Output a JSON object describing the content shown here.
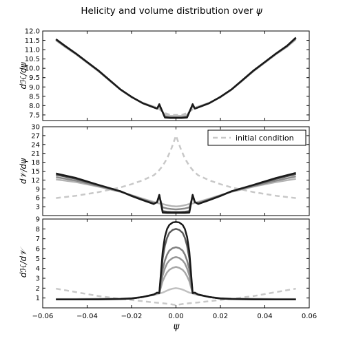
{
  "figure": {
    "title_prefix": "Helicity and volume distribution over ",
    "title_symbol": "ψ",
    "x_label": "ψ"
  },
  "chart_data": [
    {
      "type": "line",
      "ylabel": "dℋ/dψ",
      "xlim": [
        -0.06,
        0.06
      ],
      "ylim": [
        7.2,
        12.0
      ],
      "yticks": [
        7.5,
        8.0,
        8.5,
        9.0,
        9.5,
        10.0,
        10.5,
        11.0,
        11.5,
        12.0
      ],
      "ytick_labels": [
        "7.5",
        "8.0",
        "8.5",
        "9.0",
        "9.5",
        "10.0",
        "10.5",
        "11.0",
        "11.5",
        "12.0"
      ],
      "grid": false,
      "x": [
        -0.054,
        -0.05,
        -0.045,
        -0.04,
        -0.035,
        -0.03,
        -0.025,
        -0.02,
        -0.015,
        -0.01,
        -0.0085,
        -0.0075,
        -0.005,
        -0.0025,
        0.0,
        0.0025,
        0.005,
        0.0075,
        0.0085,
        0.01,
        0.015,
        0.02,
        0.025,
        0.03,
        0.035,
        0.04,
        0.045,
        0.05,
        0.054
      ],
      "series": [
        {
          "color": "#c0c0c0",
          "dashed": true,
          "width": 2.5,
          "values": [
            11.5,
            11.15,
            10.75,
            10.3,
            9.85,
            9.35,
            8.85,
            8.45,
            8.15,
            7.95,
            7.9,
            7.8,
            7.6,
            7.5,
            7.5,
            7.5,
            7.6,
            7.8,
            7.9,
            7.95,
            8.15,
            8.45,
            8.85,
            9.35,
            9.85,
            10.3,
            10.75,
            11.15,
            11.55
          ]
        },
        {
          "color": "#c0c0c0",
          "dashed": false,
          "width": 2.5,
          "values": [
            11.5,
            11.15,
            10.75,
            10.3,
            9.85,
            9.35,
            8.85,
            8.45,
            8.15,
            7.95,
            7.85,
            7.95,
            7.5,
            7.45,
            7.45,
            7.45,
            7.5,
            7.95,
            7.85,
            7.95,
            8.15,
            8.45,
            8.85,
            9.35,
            9.85,
            10.3,
            10.75,
            11.15,
            11.55
          ]
        },
        {
          "color": "#8a8a8a",
          "dashed": false,
          "width": 2.5,
          "values": [
            11.52,
            11.18,
            10.77,
            10.32,
            9.87,
            9.36,
            8.86,
            8.46,
            8.14,
            7.92,
            7.85,
            8.0,
            7.42,
            7.38,
            7.38,
            7.38,
            7.42,
            8.0,
            7.85,
            7.92,
            8.14,
            8.46,
            8.86,
            9.36,
            9.87,
            10.32,
            10.77,
            11.18,
            11.6
          ]
        },
        {
          "color": "#4a4a4a",
          "dashed": false,
          "width": 2.5,
          "values": [
            11.55,
            11.2,
            10.78,
            10.33,
            9.88,
            9.37,
            8.86,
            8.46,
            8.13,
            7.9,
            7.84,
            8.05,
            7.38,
            7.35,
            7.35,
            7.35,
            7.38,
            8.05,
            7.84,
            7.9,
            8.13,
            8.46,
            8.86,
            9.37,
            9.88,
            10.33,
            10.78,
            11.2,
            11.62
          ]
        },
        {
          "color": "#1a1a1a",
          "dashed": false,
          "width": 2.5,
          "values": [
            11.56,
            11.21,
            10.79,
            10.34,
            9.89,
            9.38,
            8.87,
            8.47,
            8.13,
            7.9,
            7.84,
            8.08,
            7.36,
            7.34,
            7.34,
            7.34,
            7.36,
            8.08,
            7.84,
            7.9,
            8.13,
            8.47,
            8.87,
            9.38,
            9.89,
            10.34,
            10.79,
            11.21,
            11.65
          ]
        }
      ]
    },
    {
      "type": "line",
      "ylabel": "d𝒱/dψ",
      "xlim": [
        -0.06,
        0.06
      ],
      "ylim": [
        0,
        30
      ],
      "yticks": [
        3,
        6,
        9,
        12,
        15,
        18,
        21,
        24,
        27,
        30
      ],
      "ytick_labels": [
        "3",
        "6",
        "9",
        "12",
        "15",
        "18",
        "21",
        "24",
        "27",
        "30"
      ],
      "grid": false,
      "legend": {
        "position": "upper-right",
        "label": "initial condition"
      },
      "x": [
        -0.054,
        -0.045,
        -0.035,
        -0.025,
        -0.02,
        -0.015,
        -0.01,
        -0.0085,
        -0.0075,
        -0.006,
        -0.004,
        -0.002,
        0.0,
        0.002,
        0.004,
        0.006,
        0.0075,
        0.0085,
        0.01,
        0.015,
        0.02,
        0.025,
        0.035,
        0.045,
        0.054
      ],
      "series": [
        {
          "color": "#c8c8c8",
          "dashed": true,
          "width": 2.5,
          "values": [
            5.9,
            6.7,
            7.9,
            9.5,
            10.6,
            11.9,
            13.6,
            14.6,
            15.4,
            16.8,
            19.3,
            22.8,
            27.0,
            22.8,
            19.3,
            16.8,
            15.4,
            14.6,
            13.6,
            11.9,
            10.6,
            9.5,
            7.9,
            6.7,
            5.9
          ]
        },
        {
          "color": "#b4b4b4",
          "dashed": false,
          "width": 2.5,
          "values": [
            12.2,
            11.3,
            9.8,
            8.0,
            6.9,
            5.7,
            4.6,
            4.3,
            4.1,
            3.9,
            3.5,
            3.2,
            3.1,
            3.2,
            3.5,
            3.9,
            4.1,
            4.3,
            4.6,
            5.7,
            6.9,
            8.0,
            9.8,
            11.3,
            12.4
          ]
        },
        {
          "color": "#8a8a8a",
          "dashed": false,
          "width": 2.5,
          "values": [
            13.0,
            11.8,
            10.0,
            8.1,
            6.8,
            5.5,
            4.3,
            4.4,
            6.5,
            2.8,
            2.4,
            2.2,
            2.1,
            2.2,
            2.4,
            2.8,
            6.5,
            4.4,
            4.3,
            5.5,
            6.8,
            8.1,
            10.0,
            11.8,
            13.2
          ]
        },
        {
          "color": "#4a4a4a",
          "dashed": false,
          "width": 2.5,
          "values": [
            13.8,
            12.4,
            10.3,
            8.2,
            6.7,
            5.3,
            4.0,
            4.5,
            6.9,
            1.5,
            1.3,
            1.2,
            1.2,
            1.2,
            1.3,
            1.5,
            6.9,
            4.5,
            4.0,
            5.3,
            6.7,
            8.2,
            10.3,
            12.4,
            14.0
          ]
        },
        {
          "color": "#1a1a1a",
          "dashed": false,
          "width": 2.5,
          "values": [
            14.2,
            12.7,
            10.4,
            8.2,
            6.6,
            5.2,
            3.9,
            4.6,
            7.0,
            1.0,
            0.9,
            0.9,
            0.9,
            0.9,
            0.9,
            1.0,
            7.0,
            4.6,
            3.9,
            5.2,
            6.6,
            8.2,
            10.4,
            12.7,
            14.4
          ]
        }
      ]
    },
    {
      "type": "line",
      "ylabel": "dℋ/d𝒱",
      "xlim": [
        -0.06,
        0.06
      ],
      "ylim": [
        0,
        9
      ],
      "yticks": [
        1,
        2,
        3,
        4,
        5,
        6,
        7,
        8,
        9
      ],
      "ytick_labels": [
        "1",
        "2",
        "3",
        "4",
        "5",
        "6",
        "7",
        "8",
        "9"
      ],
      "xticks": [
        -0.06,
        -0.04,
        -0.02,
        0.0,
        0.02,
        0.04,
        0.06
      ],
      "xtick_labels": [
        "−0.06",
        "−0.04",
        "−0.02",
        "0.00",
        "0.02",
        "0.04",
        "0.06"
      ],
      "grid": false,
      "x": [
        -0.054,
        -0.045,
        -0.035,
        -0.025,
        -0.02,
        -0.015,
        -0.01,
        -0.0085,
        -0.0075,
        -0.006,
        -0.005,
        -0.004,
        -0.003,
        -0.0015,
        0.0,
        0.0015,
        0.003,
        0.004,
        0.005,
        0.006,
        0.0075,
        0.0085,
        0.01,
        0.015,
        0.02,
        0.025,
        0.035,
        0.045,
        0.054
      ],
      "series": [
        {
          "color": "#c8c8c8",
          "dashed": true,
          "width": 2.5,
          "values": [
            1.95,
            1.6,
            1.2,
            0.93,
            0.8,
            0.68,
            0.55,
            0.52,
            0.5,
            0.47,
            0.45,
            0.42,
            0.39,
            0.34,
            0.3,
            0.34,
            0.39,
            0.42,
            0.45,
            0.47,
            0.5,
            0.52,
            0.55,
            0.68,
            0.8,
            0.93,
            1.2,
            1.6,
            1.95
          ]
        },
        {
          "color": "#c0c0c0",
          "dashed": false,
          "width": 2.5,
          "values": [
            0.9,
            0.9,
            0.92,
            0.95,
            1.0,
            1.1,
            1.3,
            1.38,
            1.45,
            1.55,
            1.65,
            1.75,
            1.85,
            1.95,
            2.0,
            1.95,
            1.85,
            1.75,
            1.65,
            1.55,
            1.45,
            1.38,
            1.3,
            1.1,
            1.0,
            0.95,
            0.92,
            0.9,
            0.9
          ]
        },
        {
          "color": "#a8a8a8",
          "dashed": false,
          "width": 2.5,
          "values": [
            0.88,
            0.88,
            0.9,
            0.93,
            0.98,
            1.1,
            1.32,
            1.45,
            1.5,
            2.7,
            3.2,
            3.6,
            3.85,
            4.05,
            4.15,
            4.05,
            3.85,
            3.6,
            3.2,
            2.7,
            1.5,
            1.45,
            1.32,
            1.1,
            0.98,
            0.93,
            0.9,
            0.88,
            0.88
          ]
        },
        {
          "color": "#969696",
          "dashed": false,
          "width": 2.5,
          "values": [
            0.87,
            0.87,
            0.89,
            0.92,
            0.97,
            1.1,
            1.33,
            1.48,
            1.5,
            3.3,
            4.0,
            4.5,
            4.8,
            5.05,
            5.15,
            5.05,
            4.8,
            4.5,
            4.0,
            3.3,
            1.5,
            1.48,
            1.33,
            1.1,
            0.97,
            0.92,
            0.89,
            0.87,
            0.87
          ]
        },
        {
          "color": "#808080",
          "dashed": false,
          "width": 2.5,
          "values": [
            0.86,
            0.86,
            0.88,
            0.91,
            0.96,
            1.1,
            1.34,
            1.5,
            1.5,
            3.9,
            4.8,
            5.4,
            5.8,
            6.05,
            6.15,
            6.05,
            5.8,
            5.4,
            4.8,
            3.9,
            1.5,
            1.5,
            1.34,
            1.1,
            0.96,
            0.91,
            0.88,
            0.86,
            0.86
          ]
        },
        {
          "color": "#5a5a5a",
          "dashed": false,
          "width": 2.5,
          "values": [
            0.85,
            0.85,
            0.87,
            0.9,
            0.95,
            1.1,
            1.35,
            1.52,
            1.5,
            5.0,
            6.3,
            7.1,
            7.6,
            7.9,
            8.0,
            7.9,
            7.6,
            7.1,
            6.3,
            5.0,
            1.5,
            1.52,
            1.35,
            1.1,
            0.95,
            0.9,
            0.87,
            0.85,
            0.85
          ]
        },
        {
          "color": "#1a1a1a",
          "dashed": false,
          "width": 2.5,
          "values": [
            0.85,
            0.85,
            0.86,
            0.89,
            0.94,
            1.1,
            1.35,
            1.55,
            1.5,
            5.7,
            7.2,
            8.0,
            8.4,
            8.65,
            8.7,
            8.65,
            8.4,
            8.0,
            7.2,
            5.7,
            1.5,
            1.55,
            1.35,
            1.1,
            0.94,
            0.89,
            0.86,
            0.85,
            0.85
          ]
        }
      ]
    }
  ]
}
